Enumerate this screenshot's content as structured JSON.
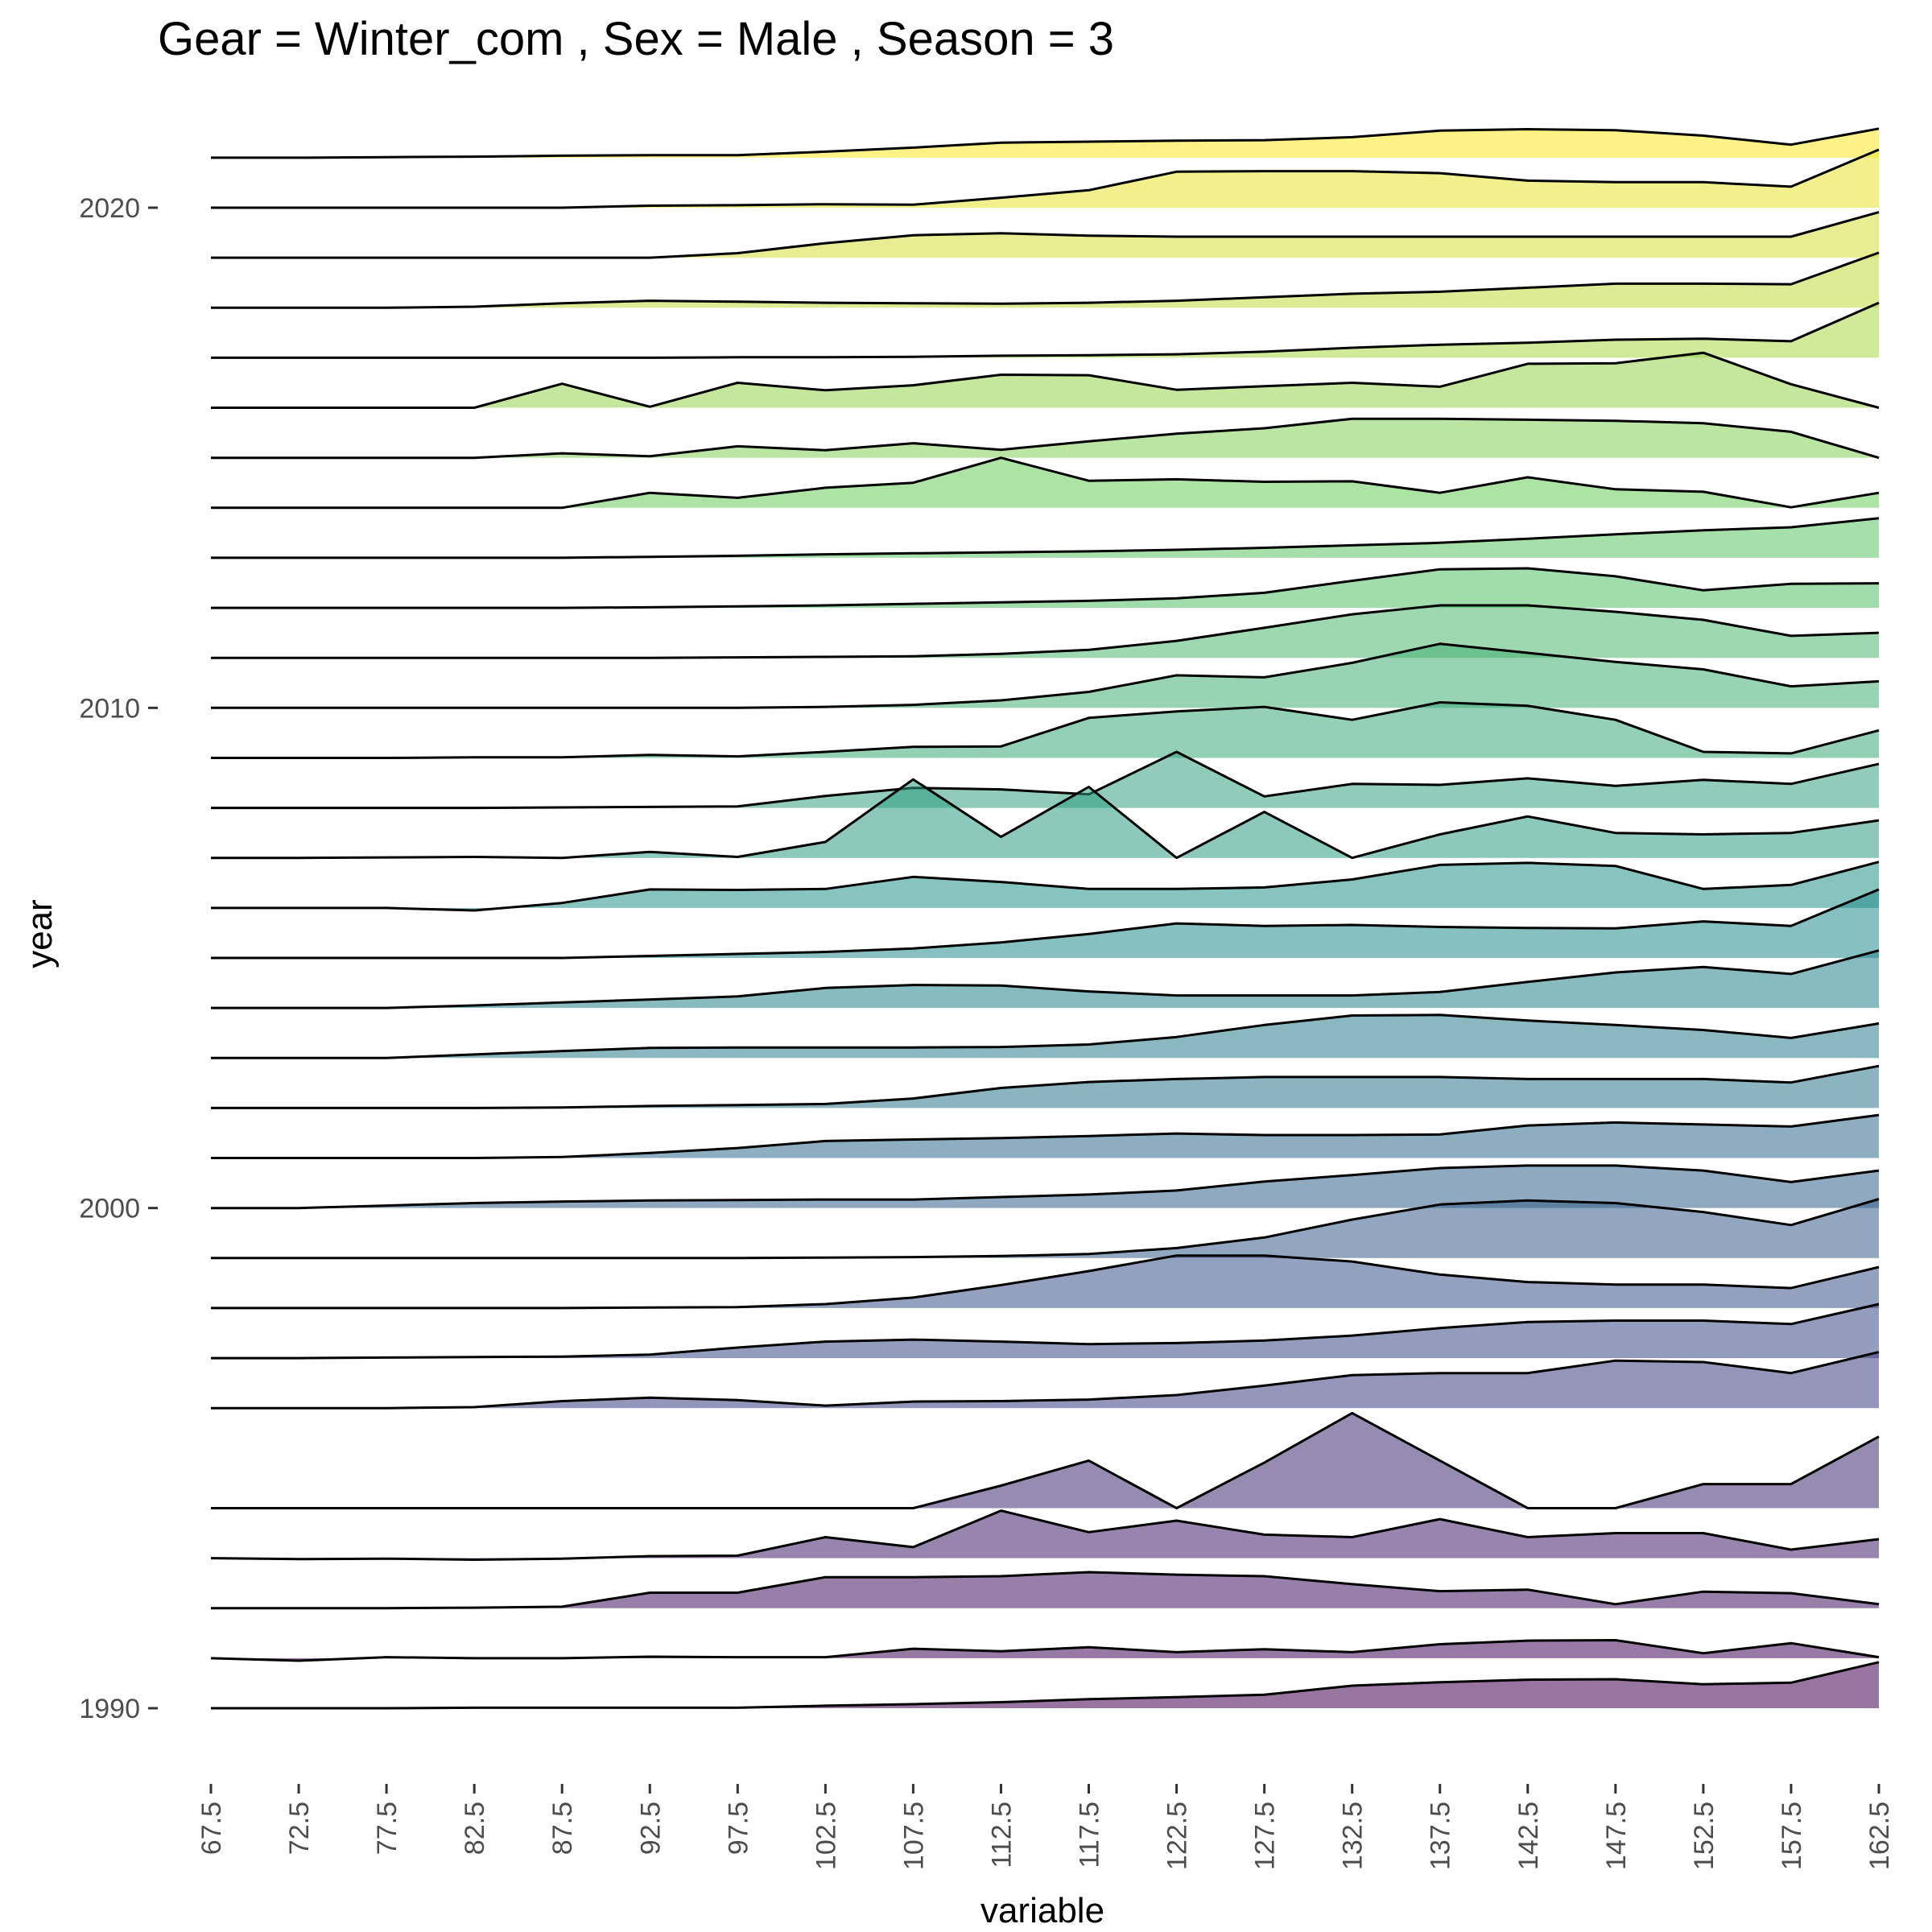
{
  "chart_data": {
    "type": "area",
    "subtype": "ridgeline",
    "title": "Gear = Winter_com , Sex = Male , Season = 3",
    "xlabel": "variable",
    "ylabel": "year",
    "x": [
      67.5,
      72.5,
      77.5,
      82.5,
      87.5,
      92.5,
      97.5,
      102.5,
      107.5,
      112.5,
      117.5,
      122.5,
      127.5,
      132.5,
      137.5,
      142.5,
      147.5,
      152.5,
      157.5,
      162.5
    ],
    "x_tick_labels": [
      "67.5",
      "72.5",
      "77.5",
      "82.5",
      "87.5",
      "92.5",
      "97.5",
      "102.5",
      "107.5",
      "112.5",
      "117.5",
      "122.5",
      "127.5",
      "132.5",
      "137.5",
      "142.5",
      "147.5",
      "152.5",
      "157.5",
      "162.5"
    ],
    "y_ticks": [
      1990,
      2000,
      2010,
      2020
    ],
    "y_tick_labels": [
      "1990",
      "2000",
      "2010",
      "2020"
    ],
    "ylim": [
      1990,
      2020
    ],
    "grid": false,
    "legend": "none",
    "color_scale": "viridis",
    "colors": [
      "#440154",
      "#3b528b",
      "#21908d",
      "#5dc963",
      "#fde725"
    ],
    "fill_opacity": 0.55,
    "height_units": "ridge height in year-spacing units (1.0 = distance between adjacent years)",
    "series": [
      {
        "year": 1990,
        "heights": [
          0,
          0,
          0,
          0.01,
          0.01,
          0.01,
          0.01,
          0.05,
          0.08,
          0.12,
          0.18,
          0.22,
          0.27,
          0.45,
          0.52,
          0.57,
          0.58,
          0.48,
          0.51,
          0.92
        ]
      },
      {
        "year": 1991,
        "heights": [
          0,
          -0.05,
          0.02,
          0,
          0,
          0.03,
          0.02,
          0.02,
          0.19,
          0.14,
          0.22,
          0.12,
          0.18,
          0.12,
          0.28,
          0.35,
          0.36,
          0.1,
          0.3,
          0.02
        ]
      },
      {
        "year": 1992,
        "heights": [
          0,
          0,
          0,
          0.01,
          0.03,
          0.31,
          0.31,
          0.62,
          0.62,
          0.64,
          0.72,
          0.67,
          0.64,
          0.48,
          0.34,
          0.37,
          0.08,
          0.33,
          0.3,
          0.08
        ]
      },
      {
        "year": 1993,
        "heights": [
          0,
          -0.02,
          -0.01,
          -0.03,
          -0.01,
          0.04,
          0.05,
          0.42,
          0.22,
          0.95,
          0.52,
          0.75,
          0.47,
          0.42,
          0.78,
          0.42,
          0.5,
          0.5,
          0.17,
          0.38
        ]
      },
      {
        "year": 1994,
        "heights": [
          0,
          0,
          0,
          0,
          0,
          0,
          0,
          0,
          0,
          0.45,
          0.95,
          0,
          0.91,
          1.9,
          0.95,
          0,
          0,
          0.48,
          0.48,
          1.43
        ]
      },
      {
        "year": 1996,
        "heights": [
          0,
          0,
          0,
          0.02,
          0.14,
          0.21,
          0.16,
          0.05,
          0.13,
          0.14,
          0.17,
          0.26,
          0.45,
          0.66,
          0.7,
          0.7,
          0.95,
          0.92,
          0.7,
          1.12
        ]
      },
      {
        "year": 1997,
        "heights": [
          0,
          0,
          0.01,
          0.02,
          0.03,
          0.07,
          0.21,
          0.33,
          0.37,
          0.33,
          0.28,
          0.3,
          0.35,
          0.45,
          0.6,
          0.72,
          0.75,
          0.75,
          0.68,
          1.08
        ]
      },
      {
        "year": 1998,
        "heights": [
          0,
          0,
          0,
          0,
          0,
          0.01,
          0.02,
          0.08,
          0.21,
          0.46,
          0.74,
          1.05,
          1.05,
          0.93,
          0.67,
          0.52,
          0.47,
          0.47,
          0.4,
          0.82
        ]
      },
      {
        "year": 1999,
        "heights": [
          0,
          0,
          0,
          0,
          0,
          0,
          0,
          0.01,
          0.02,
          0.04,
          0.08,
          0.2,
          0.41,
          0.77,
          1.07,
          1.15,
          1.1,
          0.92,
          0.66,
          1.18
        ]
      },
      {
        "year": 2000,
        "heights": [
          0,
          0,
          0.05,
          0.1,
          0.13,
          0.15,
          0.16,
          0.17,
          0.17,
          0.22,
          0.27,
          0.35,
          0.53,
          0.66,
          0.8,
          0.85,
          0.85,
          0.75,
          0.52,
          0.75
        ]
      },
      {
        "year": 2001,
        "heights": [
          0,
          0,
          0,
          0,
          0.02,
          0.1,
          0.2,
          0.34,
          0.37,
          0.4,
          0.44,
          0.49,
          0.46,
          0.46,
          0.47,
          0.65,
          0.71,
          0.67,
          0.63,
          0.86
        ]
      },
      {
        "year": 2002,
        "heights": [
          0,
          0,
          0,
          0,
          0.01,
          0.04,
          0.06,
          0.08,
          0.19,
          0.4,
          0.52,
          0.58,
          0.62,
          0.62,
          0.62,
          0.58,
          0.58,
          0.58,
          0.51,
          0.84
        ]
      },
      {
        "year": 2003,
        "heights": [
          0,
          0,
          0,
          0.07,
          0.14,
          0.2,
          0.21,
          0.21,
          0.21,
          0.22,
          0.27,
          0.42,
          0.66,
          0.85,
          0.86,
          0.75,
          0.66,
          0.56,
          0.4,
          0.69
        ]
      },
      {
        "year": 2004,
        "heights": [
          0,
          0,
          0,
          0.05,
          0.11,
          0.17,
          0.23,
          0.4,
          0.46,
          0.45,
          0.33,
          0.25,
          0.25,
          0.25,
          0.32,
          0.52,
          0.71,
          0.82,
          0.68,
          1.15
        ]
      },
      {
        "year": 2005,
        "heights": [
          0,
          0,
          0,
          0,
          0,
          0.04,
          0.08,
          0.12,
          0.19,
          0.31,
          0.48,
          0.69,
          0.64,
          0.66,
          0.62,
          0.6,
          0.59,
          0.73,
          0.64,
          1.37
        ]
      },
      {
        "year": 2006,
        "heights": [
          0,
          0,
          0,
          -0.05,
          0.1,
          0.37,
          0.36,
          0.38,
          0.62,
          0.52,
          0.38,
          0.38,
          0.41,
          0.57,
          0.86,
          0.9,
          0.84,
          0.38,
          0.46,
          0.92
        ]
      },
      {
        "year": 2007,
        "heights": [
          0,
          0,
          0.01,
          0.02,
          0,
          0.12,
          0.02,
          0.32,
          1.57,
          0.42,
          1.42,
          0,
          0.92,
          0,
          0.47,
          0.83,
          0.5,
          0.47,
          0.5,
          0.75
        ]
      },
      {
        "year": 2008,
        "heights": [
          0,
          0,
          0,
          0,
          0.01,
          0.02,
          0.03,
          0.24,
          0.4,
          0.37,
          0.27,
          1.12,
          0.23,
          0.48,
          0.46,
          0.59,
          0.44,
          0.56,
          0.48,
          0.88
        ]
      },
      {
        "year": 2009,
        "heights": [
          0,
          0,
          0,
          0.01,
          0.01,
          0.06,
          0.03,
          0.12,
          0.22,
          0.23,
          0.8,
          0.93,
          1.02,
          0.76,
          1.11,
          1.04,
          0.76,
          0.12,
          0.09,
          0.55
        ]
      },
      {
        "year": 2010,
        "heights": [
          0,
          0,
          0,
          0,
          0,
          0,
          0,
          0.02,
          0.06,
          0.15,
          0.32,
          0.65,
          0.61,
          0.9,
          1.28,
          1.1,
          0.92,
          0.77,
          0.43,
          0.53
        ]
      },
      {
        "year": 2011,
        "heights": [
          0,
          0,
          0,
          0,
          0,
          0,
          0.01,
          0.02,
          0.03,
          0.08,
          0.16,
          0.34,
          0.6,
          0.87,
          1.05,
          1.05,
          0.92,
          0.76,
          0.44,
          0.5
        ]
      },
      {
        "year": 2012,
        "heights": [
          0,
          0,
          0,
          0,
          0,
          0.01,
          0.03,
          0.05,
          0.08,
          0.11,
          0.14,
          0.19,
          0.3,
          0.54,
          0.77,
          0.79,
          0.63,
          0.35,
          0.48,
          0.49
        ]
      },
      {
        "year": 2013,
        "heights": [
          0,
          0,
          0,
          0,
          0,
          0.02,
          0.04,
          0.07,
          0.09,
          0.11,
          0.13,
          0.16,
          0.2,
          0.25,
          0.3,
          0.38,
          0.47,
          0.55,
          0.61,
          0.79
        ]
      },
      {
        "year": 2014,
        "heights": [
          0,
          0,
          0,
          0,
          0,
          0.3,
          0.2,
          0.4,
          0.5,
          1.0,
          0.54,
          0.57,
          0.52,
          0.53,
          0.3,
          0.61,
          0.37,
          0.32,
          0.01,
          0.3
        ]
      },
      {
        "year": 2015,
        "heights": [
          0,
          0,
          0,
          0,
          0.09,
          0.03,
          0.23,
          0.15,
          0.29,
          0.16,
          0.33,
          0.48,
          0.59,
          0.78,
          0.78,
          0.76,
          0.74,
          0.69,
          0.52,
          0.0
        ]
      },
      {
        "year": 2016,
        "heights": [
          0,
          0,
          0,
          0,
          0.48,
          0.02,
          0.5,
          0.35,
          0.45,
          0.66,
          0.65,
          0.36,
          0.43,
          0.5,
          0.42,
          0.88,
          0.89,
          1.1,
          0.47,
          0.0
        ]
      },
      {
        "year": 2017,
        "heights": [
          0,
          0,
          0,
          0,
          0,
          0,
          0.01,
          0.01,
          0.02,
          0.04,
          0.05,
          0.07,
          0.12,
          0.2,
          0.26,
          0.3,
          0.36,
          0.38,
          0.33,
          1.1
        ]
      },
      {
        "year": 2018,
        "heights": [
          0,
          0,
          0,
          0.02,
          0.09,
          0.14,
          0.12,
          0.1,
          0.09,
          0.08,
          0.1,
          0.14,
          0.21,
          0.28,
          0.32,
          0.4,
          0.48,
          0.48,
          0.47,
          1.1
        ]
      },
      {
        "year": 2019,
        "heights": [
          0,
          0,
          0,
          0,
          0,
          0,
          0.09,
          0.29,
          0.45,
          0.49,
          0.44,
          0.42,
          0.42,
          0.42,
          0.42,
          0.42,
          0.42,
          0.42,
          0.42,
          0.91
        ]
      },
      {
        "year": 2020,
        "heights": [
          0,
          0,
          0,
          0,
          0,
          0.04,
          0.05,
          0.07,
          0.06,
          0.2,
          0.35,
          0.72,
          0.73,
          0.73,
          0.69,
          0.54,
          0.51,
          0.51,
          0.42,
          1.16
        ]
      },
      {
        "year": 2021,
        "heights": [
          0,
          0,
          0.01,
          0.02,
          0.04,
          0.05,
          0.05,
          0.12,
          0.2,
          0.3,
          0.32,
          0.34,
          0.35,
          0.41,
          0.54,
          0.57,
          0.55,
          0.44,
          0.26,
          0.58
        ]
      }
    ]
  }
}
